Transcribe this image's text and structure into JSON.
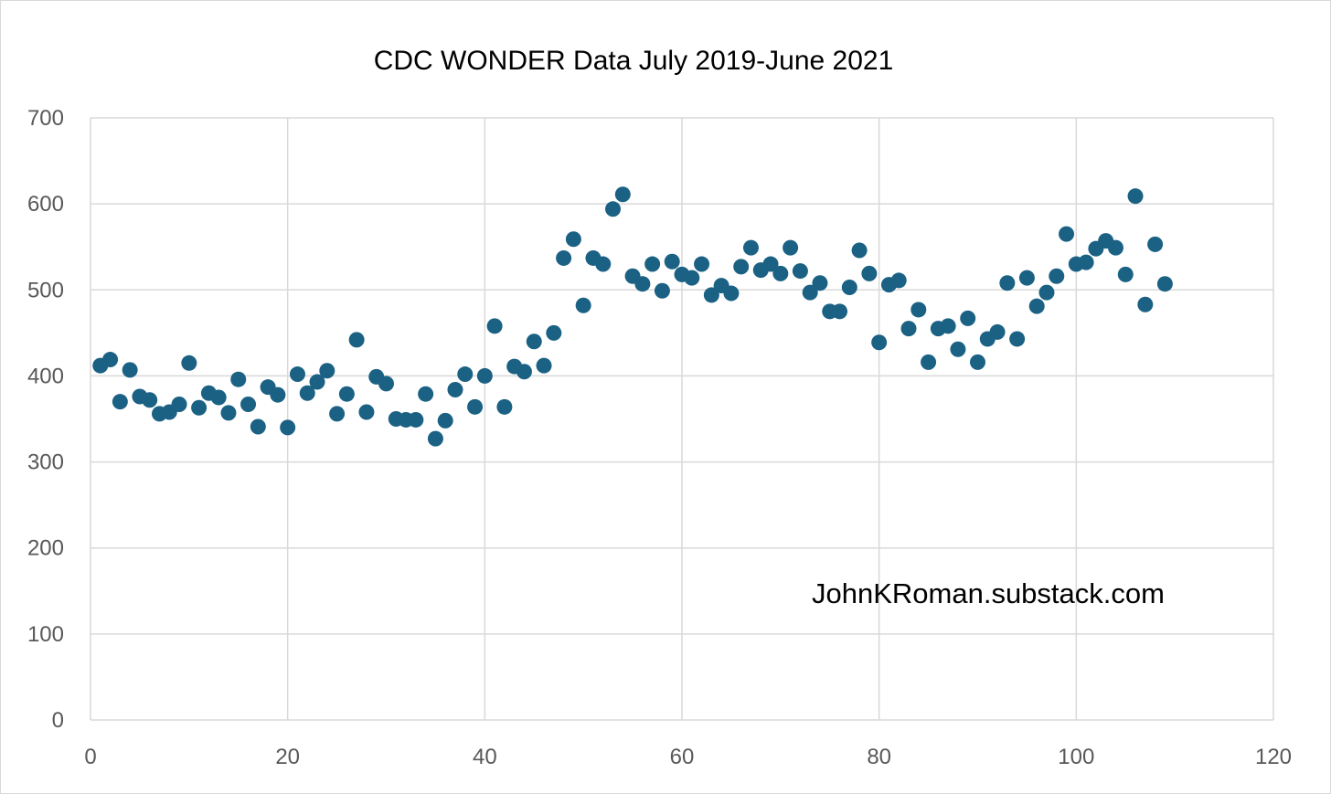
{
  "chart_data": {
    "type": "scatter",
    "title": "CDC WONDER Data July 2019-June 2021",
    "xlabel": "",
    "ylabel": "",
    "xlim": [
      0,
      120
    ],
    "ylim": [
      0,
      700
    ],
    "x_ticks": [
      0,
      20,
      40,
      60,
      80,
      100,
      120
    ],
    "y_ticks": [
      0,
      100,
      200,
      300,
      400,
      500,
      600,
      700
    ],
    "grid": true,
    "marker_color": "#1b6184",
    "series": [
      {
        "x": [
          1,
          2,
          3,
          4,
          5,
          6,
          7,
          8,
          9,
          10,
          11,
          12,
          13,
          14,
          15,
          16,
          17,
          18,
          19,
          20,
          21,
          22,
          23,
          24,
          25,
          26,
          27,
          28,
          29,
          30,
          31,
          32,
          33,
          34,
          35,
          36,
          37,
          38,
          39,
          40,
          41,
          42,
          43,
          44,
          45,
          46,
          47,
          48,
          49,
          50,
          51,
          52,
          53,
          54,
          55,
          56,
          57,
          58,
          59,
          60,
          61,
          62,
          63,
          64,
          65,
          66,
          67,
          68,
          69,
          70,
          71,
          72,
          73,
          74,
          75,
          76,
          77,
          78,
          79,
          80,
          81,
          82,
          83,
          84,
          85,
          86,
          87,
          88,
          89,
          90,
          91,
          92,
          93,
          94,
          95,
          96,
          97,
          98,
          99,
          100,
          101,
          102,
          103,
          104,
          105,
          106,
          107,
          108,
          109
        ],
        "y": [
          412,
          419,
          370,
          407,
          376,
          372,
          356,
          358,
          367,
          415,
          363,
          380,
          375,
          357,
          396,
          367,
          341,
          387,
          378,
          340,
          402,
          380,
          393,
          406,
          356,
          379,
          442,
          358,
          399,
          391,
          350,
          349,
          349,
          379,
          327,
          348,
          384,
          402,
          364,
          400,
          458,
          364,
          411,
          405,
          440,
          412,
          450,
          537,
          559,
          482,
          537,
          530,
          594,
          611,
          516,
          507,
          530,
          499,
          533,
          518,
          514,
          530,
          494,
          505,
          496,
          527,
          549,
          523,
          530,
          519,
          549,
          522,
          497,
          508,
          475,
          475,
          503,
          546,
          519,
          439,
          506,
          511,
          455,
          477,
          416,
          455,
          458,
          431,
          467,
          416,
          443,
          451,
          508,
          443,
          514,
          481,
          497,
          516,
          565,
          530,
          532,
          548,
          557,
          549,
          518,
          609,
          483,
          553,
          507
        ]
      }
    ]
  },
  "watermark": "JohnKRoman.substack.com"
}
